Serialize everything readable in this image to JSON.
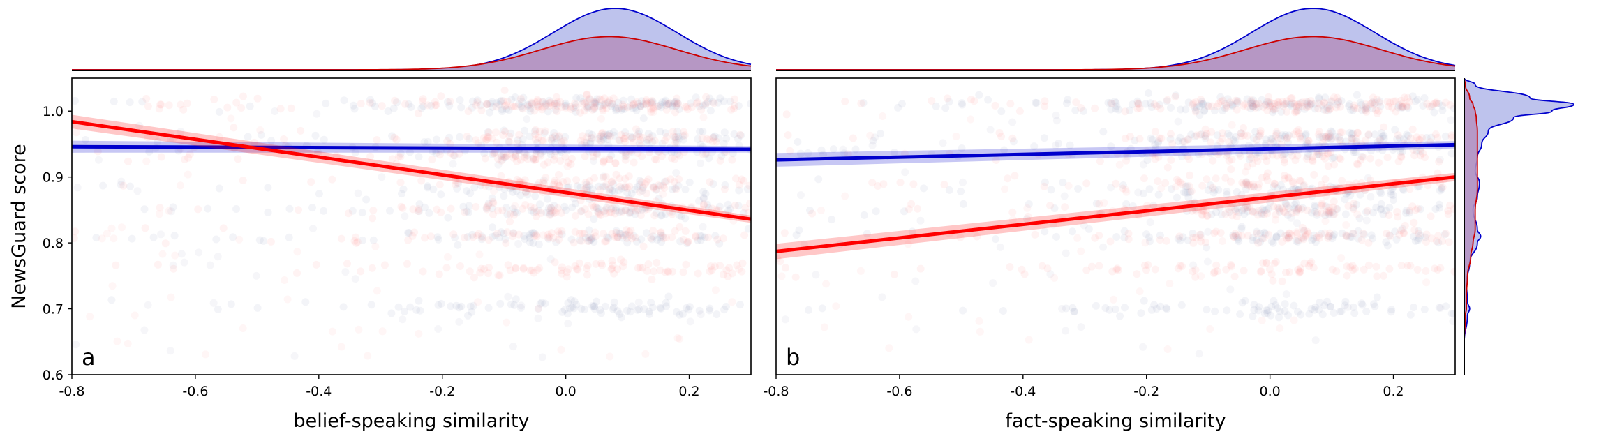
{
  "chart_data": [
    {
      "type": "scatter",
      "panel_label": "a",
      "xlabel": "belief-speaking similarity",
      "ylabel": "NewsGuard score",
      "xlim": [
        -0.8,
        0.3
      ],
      "ylim": [
        0.6,
        1.05
      ],
      "xticks": [
        -0.8,
        -0.6,
        -0.4,
        -0.2,
        0.0,
        0.2
      ],
      "xtick_labels": [
        "-0.8",
        "-0.6",
        "-0.4",
        "-0.2",
        "0.0",
        "0.2"
      ],
      "yticks": [
        0.6,
        0.7,
        0.8,
        0.9,
        1.0
      ],
      "ytick_labels": [
        "0.6",
        "0.7",
        "0.8",
        "0.9",
        "1.0"
      ],
      "grid": false,
      "series": [
        {
          "color": "#0000cc",
          "regression": {
            "x": [
              -0.8,
              0.3
            ],
            "y": [
              0.946,
              0.942
            ]
          },
          "ci_halfwidth": 0.007,
          "scatter_bands": [
            1.01,
            0.96,
            0.94,
            0.88,
            0.85,
            0.81,
            0.7
          ],
          "scatter_center_x": 0.05
        },
        {
          "color": "#ff0000",
          "regression": {
            "x": [
              -0.8,
              0.3
            ],
            "y": [
              0.984,
              0.836
            ]
          },
          "ci_halfwidth": 0.008,
          "scatter_bands": [
            1.01,
            0.96,
            0.93,
            0.89,
            0.85,
            0.81,
            0.76
          ],
          "scatter_center_x": 0.05
        }
      ],
      "marginal_x": {
        "series": [
          {
            "color": "#0000cc",
            "fill": "#b3b9ea",
            "peak_x": 0.08,
            "sd": 0.1,
            "height": 1.0
          },
          {
            "color": "#cc0000",
            "fill": "#b592bf",
            "peak_x": 0.07,
            "sd": 0.11,
            "height": 0.54
          }
        ]
      }
    },
    {
      "type": "scatter",
      "panel_label": "b",
      "xlabel": "fact-speaking similarity",
      "ylabel": "",
      "xlim": [
        -0.8,
        0.3
      ],
      "ylim": [
        0.6,
        1.05
      ],
      "xticks": [
        -0.8,
        -0.6,
        -0.4,
        -0.2,
        0.0,
        0.2
      ],
      "xtick_labels": [
        "-0.8",
        "-0.6",
        "-0.4",
        "-0.2",
        "0.0",
        "0.2"
      ],
      "grid": false,
      "series": [
        {
          "color": "#0000cc",
          "regression": {
            "x": [
              -0.8,
              0.3
            ],
            "y": [
              0.926,
              0.949
            ]
          },
          "ci_halfwidth": 0.008,
          "scatter_bands": [
            1.01,
            0.96,
            0.94,
            0.88,
            0.85,
            0.81,
            0.7
          ],
          "scatter_center_x": 0.05
        },
        {
          "color": "#ff0000",
          "regression": {
            "x": [
              -0.8,
              0.3
            ],
            "y": [
              0.787,
              0.9
            ]
          },
          "ci_halfwidth": 0.009,
          "scatter_bands": [
            1.01,
            0.96,
            0.93,
            0.89,
            0.85,
            0.81,
            0.76
          ],
          "scatter_center_x": 0.05
        }
      ],
      "marginal_x": {
        "series": [
          {
            "color": "#0000cc",
            "fill": "#b3b9ea",
            "peak_x": 0.07,
            "sd": 0.1,
            "height": 1.0
          },
          {
            "color": "#cc0000",
            "fill": "#b592bf",
            "peak_x": 0.07,
            "sd": 0.11,
            "height": 0.54
          }
        ]
      },
      "marginal_y": {
        "series": [
          {
            "color": "#0000cc",
            "fill": "#b3b9ea",
            "y": [
              0.6,
              0.65,
              0.69,
              0.7,
              0.71,
              0.74,
              0.77,
              0.8,
              0.81,
              0.82,
              0.85,
              0.87,
              0.89,
              0.91,
              0.93,
              0.95,
              0.97,
              0.99,
              1.0,
              1.01,
              1.02,
              1.04,
              1.05
            ],
            "density": [
              0.0,
              0.0,
              0.03,
              0.05,
              0.03,
              0.02,
              0.05,
              0.12,
              0.15,
              0.12,
              0.08,
              0.12,
              0.14,
              0.1,
              0.12,
              0.16,
              0.22,
              0.45,
              0.8,
              1.0,
              0.6,
              0.1,
              0.0
            ]
          },
          {
            "color": "#cc0000",
            "fill": "#b592bf",
            "y": [
              0.6,
              0.65,
              0.69,
              0.7,
              0.72,
              0.75,
              0.78,
              0.8,
              0.82,
              0.85,
              0.88,
              0.9,
              0.93,
              0.95,
              0.97,
              0.99,
              1.0,
              1.01,
              1.02,
              1.04,
              1.05
            ],
            "density": [
              0.0,
              0.0,
              0.01,
              0.02,
              0.02,
              0.03,
              0.06,
              0.08,
              0.1,
              0.1,
              0.12,
              0.12,
              0.12,
              0.12,
              0.12,
              0.11,
              0.1,
              0.08,
              0.05,
              0.01,
              0.0
            ]
          }
        ]
      }
    }
  ]
}
